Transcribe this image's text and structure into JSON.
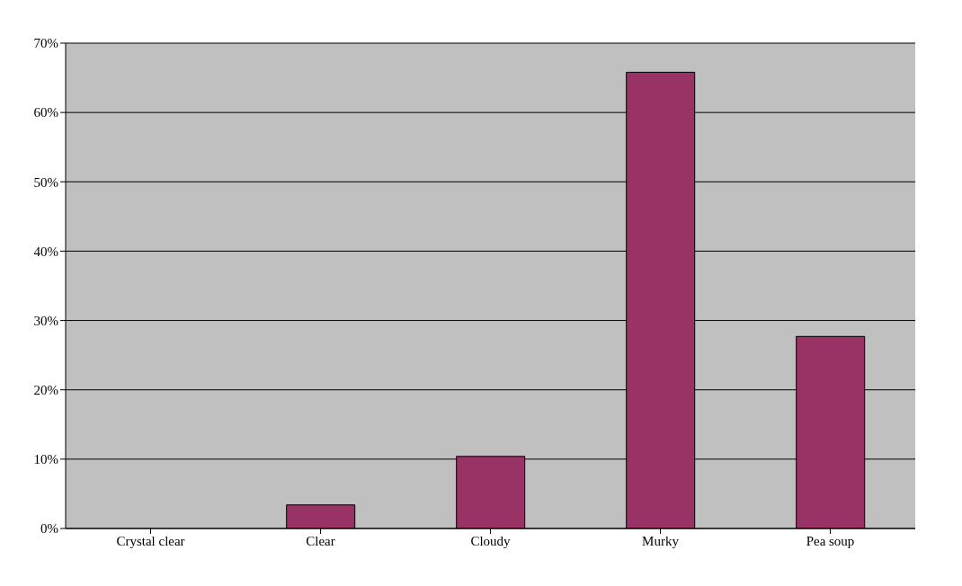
{
  "chart_data": {
    "type": "bar",
    "categories": [
      "Crystal clear",
      "Clear",
      "Cloudy",
      "Murky",
      "Pea soup"
    ],
    "values": [
      0,
      3.4,
      10.4,
      65.8,
      27.7
    ],
    "color": "#993366",
    "ylim": [
      0,
      70
    ],
    "yticks": [
      {
        "value": 0,
        "label": "0%"
      },
      {
        "value": 10,
        "label": "10%"
      },
      {
        "value": 20,
        "label": "20%"
      },
      {
        "value": 30,
        "label": "30%"
      },
      {
        "value": 40,
        "label": "40%"
      },
      {
        "value": 50,
        "label": "50%"
      },
      {
        "value": 60,
        "label": "60%"
      },
      {
        "value": 70,
        "label": "70%"
      }
    ],
    "grid": "y",
    "legend": false
  }
}
